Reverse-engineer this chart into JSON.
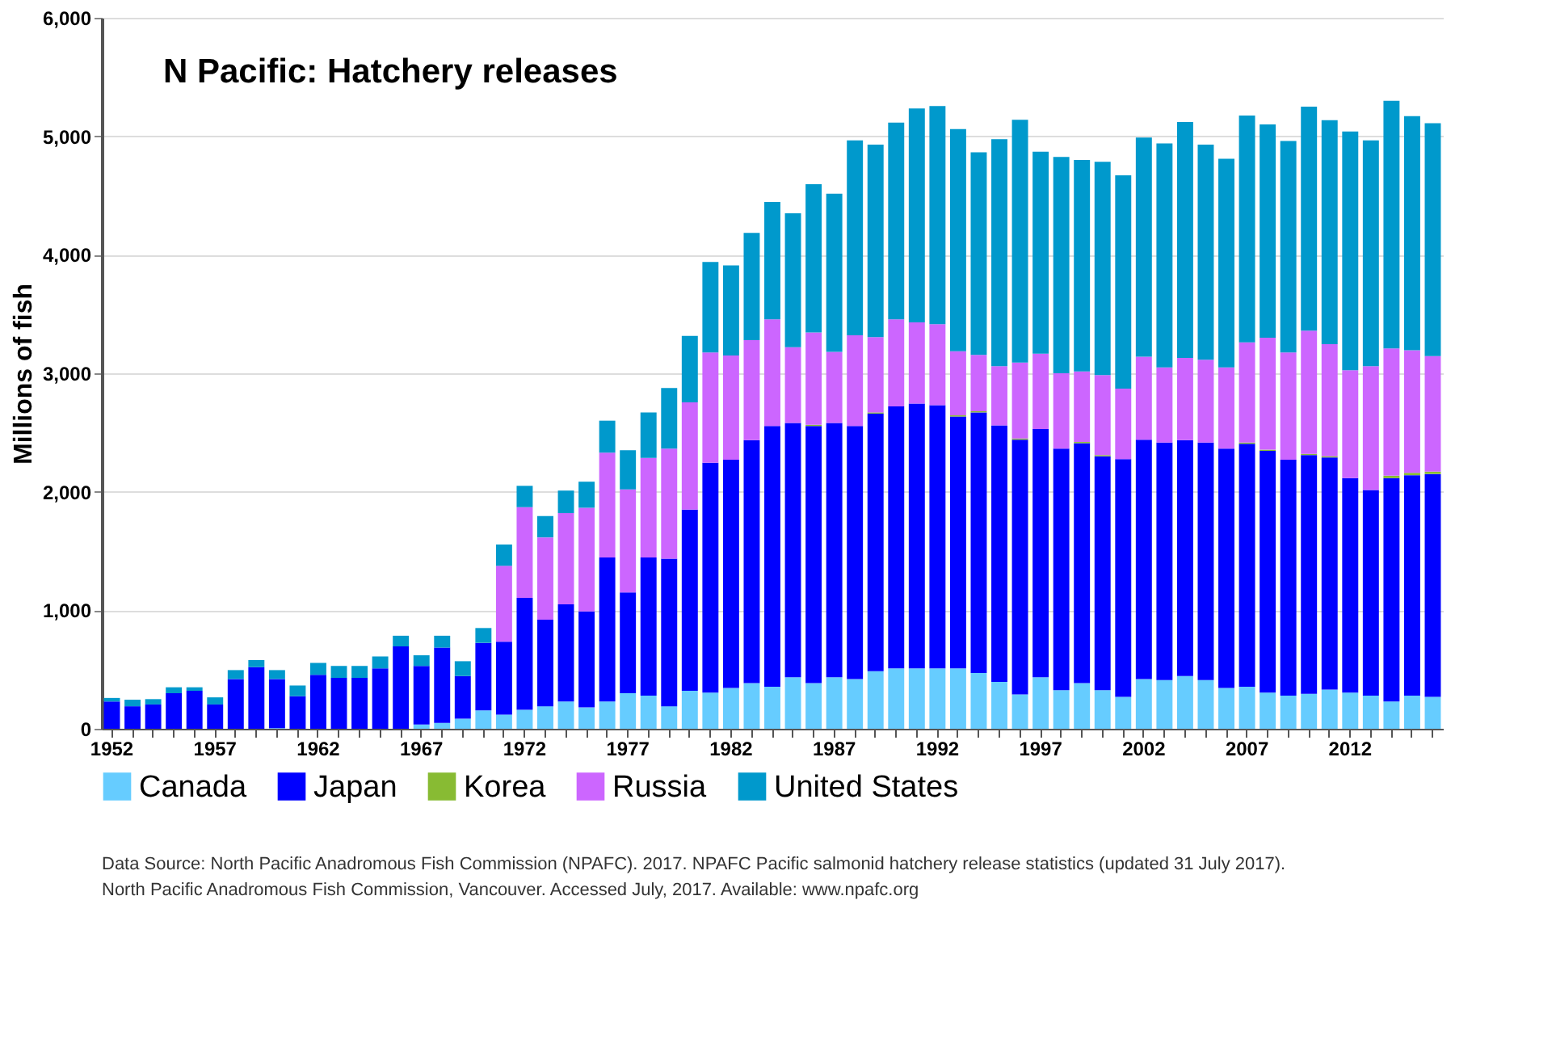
{
  "chart_data": {
    "type": "bar",
    "title": "N Pacific: Hatchery releases",
    "ylabel": "Millions of fish",
    "stacked": true,
    "grid": "y",
    "legend": "bottom",
    "categories": [
      "1952",
      null,
      null,
      null,
      null,
      "1957",
      null,
      null,
      null,
      null,
      "1962",
      null,
      null,
      null,
      null,
      "1967",
      null,
      null,
      null,
      null,
      "1972",
      null,
      null,
      null,
      null,
      "1977",
      null,
      null,
      null,
      null,
      "1982",
      null,
      null,
      null,
      null,
      "1987",
      null,
      null,
      null,
      null,
      "1992",
      null,
      null,
      null,
      null,
      "1997",
      null,
      null,
      null,
      null,
      "2002",
      null,
      null,
      null,
      null,
      "2007",
      null,
      null,
      null,
      null,
      "2012",
      null,
      null,
      null,
      null
    ],
    "ylim": [
      0,
      6000
    ],
    "yticks": [
      0,
      {
        "value": 1000,
        "label": "1,000"
      },
      {
        "value": 2000,
        "label": "2,000"
      },
      {
        "value": 3000,
        "label": "3,000"
      },
      {
        "value": 4000,
        "label": "4,000"
      },
      {
        "value": 5000,
        "label": "5,000"
      },
      {
        "value": 6000,
        "label": "6,000"
      }
    ],
    "series": [
      {
        "name": "Canada",
        "color": "#66ccff",
        "values": [
          0,
          0,
          0,
          0,
          0,
          0,
          0,
          0,
          5,
          0,
          0,
          0,
          0,
          0,
          0,
          35,
          50,
          85,
          155,
          120,
          160,
          190,
          230,
          180,
          230,
          300,
          280,
          190,
          320,
          305,
          345,
          385,
          355,
          435,
          385,
          435,
          420,
          485,
          510,
          510,
          510,
          510,
          470,
          395,
          290,
          435,
          325,
          385,
          325,
          270,
          420,
          410,
          445,
          410,
          345,
          355,
          305,
          280,
          295,
          330,
          305,
          280,
          230,
          280,
          270
        ]
      },
      {
        "name": "Japan",
        "color": "#0000ff",
        "values": [
          230,
          190,
          205,
          300,
          320,
          205,
          420,
          520,
          415,
          275,
          455,
          430,
          430,
          510,
          695,
          495,
          635,
          360,
          570,
          615,
          945,
          730,
          820,
          810,
          1215,
          850,
          1165,
          1245,
          1530,
          1940,
          1925,
          2050,
          2200,
          2145,
          2170,
          2145,
          2135,
          2175,
          2210,
          2235,
          2220,
          2125,
          2200,
          2165,
          2150,
          2095,
          2040,
          2025,
          1975,
          2005,
          2020,
          2005,
          1990,
          2005,
          2020,
          2050,
          2040,
          1990,
          2015,
          1960,
          1810,
          1735,
          1885,
          1860,
          1880
        ]
      },
      {
        "name": "Korea",
        "color": "#88bb33",
        "values": [
          0,
          0,
          0,
          0,
          0,
          0,
          0,
          0,
          0,
          0,
          0,
          0,
          0,
          0,
          0,
          0,
          0,
          0,
          0,
          0,
          0,
          0,
          0,
          0,
          0,
          0,
          0,
          0,
          0,
          0,
          0,
          0,
          0,
          0,
          10,
          0,
          0,
          10,
          0,
          0,
          0,
          10,
          10,
          0,
          10,
          0,
          0,
          10,
          10,
          0,
          0,
          0,
          0,
          0,
          0,
          10,
          10,
          0,
          10,
          10,
          0,
          0,
          20,
          20,
          20
        ]
      },
      {
        "name": "Russia",
        "color": "#cc66ff",
        "values": [
          0,
          0,
          0,
          0,
          0,
          0,
          0,
          0,
          0,
          0,
          0,
          0,
          0,
          0,
          0,
          0,
          0,
          0,
          0,
          640,
          765,
          695,
          770,
          875,
          885,
          870,
          840,
          930,
          905,
          930,
          880,
          845,
          900,
          640,
          780,
          600,
          765,
          635,
          735,
          685,
          685,
          540,
          475,
          500,
          640,
          635,
          635,
          595,
          675,
          595,
          700,
          635,
          695,
          700,
          685,
          845,
          945,
          905,
          1040,
          945,
          910,
          1045,
          1075,
          1035,
          975
        ]
      },
      {
        "name": "United States",
        "color": "#0099cc",
        "values": [
          30,
          55,
          45,
          50,
          30,
          60,
          75,
          60,
          75,
          90,
          100,
          100,
          100,
          100,
          90,
          90,
          100,
          125,
          125,
          180,
          180,
          180,
          190,
          220,
          270,
          330,
          385,
          510,
          560,
          765,
          760,
          905,
          990,
          1130,
          1250,
          1335,
          1645,
          1625,
          1660,
          1805,
          1840,
          1875,
          1710,
          1915,
          2050,
          1705,
          1825,
          1785,
          1800,
          1800,
          1850,
          1890,
          1990,
          1815,
          1760,
          1915,
          1800,
          1785,
          1890,
          1890,
          2015,
          1905,
          2090,
          1975,
          1965
        ]
      }
    ],
    "annotations": [
      "Data Source:  North Pacific Anadromous Fish Commission (NPAFC). 2017. NPAFC Pacific salmonid hatchery release statistics (updated 31 July 2017).",
      "North Pacific Anadromous Fish Commission, Vancouver. Accessed July, 2017. Available: www.npafc.org"
    ]
  }
}
